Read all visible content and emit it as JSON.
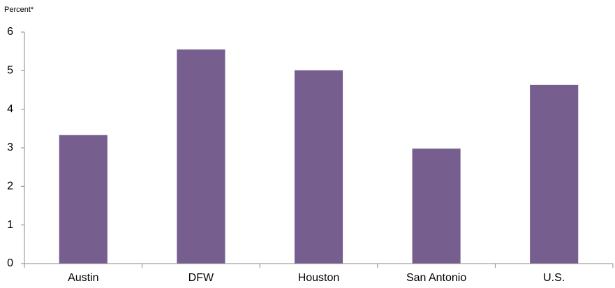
{
  "chart_data": {
    "type": "bar",
    "y_label": "Percent*",
    "categories": [
      "Austin",
      "DFW",
      "Houston",
      "San Antonio",
      "U.S."
    ],
    "values": [
      3.33,
      5.55,
      5.01,
      2.98,
      4.63
    ],
    "color": "#765e8f",
    "ylim": [
      0,
      6
    ],
    "yticks": [
      0,
      1,
      2,
      3,
      4,
      5,
      6
    ],
    "grid": false
  }
}
